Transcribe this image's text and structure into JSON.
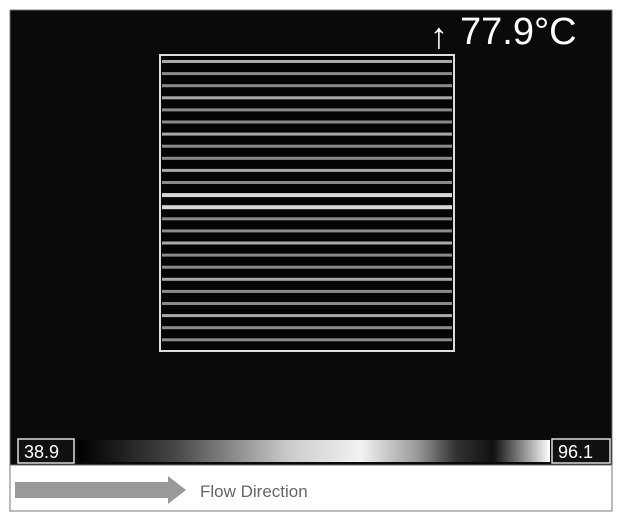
{
  "readout": {
    "temperature": "77.9°C"
  },
  "scale": {
    "min_label": "38.9",
    "max_label": "96.1"
  },
  "footer": {
    "legend": "Flow Direction"
  }
}
